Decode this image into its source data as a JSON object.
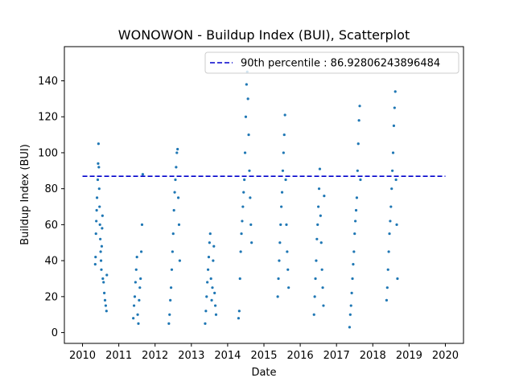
{
  "chart_data": {
    "type": "scatter",
    "title": "WONOWON - Buildup Index (BUI), Scatterplot",
    "xlabel": "Date",
    "ylabel": "Buildup Index (BUI)",
    "xlim": [
      2009.5,
      2020.5
    ],
    "ylim": [
      -6,
      159
    ],
    "x_ticks": [
      "2010",
      "2011",
      "2012",
      "2013",
      "2014",
      "2015",
      "2016",
      "2017",
      "2018",
      "2019",
      "2020"
    ],
    "y_ticks": [
      "0",
      "20",
      "40",
      "60",
      "80",
      "100",
      "120",
      "140"
    ],
    "grid": false,
    "legend": {
      "placement": "top-right",
      "entries": [
        "90th percentile : 86.92806243896484"
      ]
    },
    "reference_line": {
      "name": "90th percentile : 86.92806243896484",
      "y": 86.92806243896484,
      "x_range": [
        2010,
        2020
      ],
      "style": "dashed",
      "color": "#0000cc"
    },
    "point_color": "#1f77b4",
    "series": [
      {
        "name": "",
        "x": [
          2010.35,
          2010.36,
          2010.37,
          2010.38,
          2010.39,
          2010.4,
          2010.42,
          2010.43,
          2010.44,
          2010.45,
          2010.46,
          2010.47,
          2010.48,
          2010.49,
          2010.5,
          2010.51,
          2010.52,
          2010.53,
          2010.54,
          2010.55,
          2010.56,
          2010.58,
          2010.6,
          2010.62,
          2010.64,
          2010.66,
          2010.67,
          2011.4,
          2011.42,
          2011.44,
          2011.46,
          2011.48,
          2011.5,
          2011.52,
          2011.54,
          2011.56,
          2011.58,
          2011.6,
          2011.62,
          2011.64,
          2011.66,
          2012.38,
          2012.4,
          2012.42,
          2012.44,
          2012.46,
          2012.48,
          2012.5,
          2012.52,
          2012.54,
          2012.56,
          2012.58,
          2012.6,
          2012.62,
          2012.64,
          2012.66,
          2012.68,
          2013.38,
          2013.4,
          2013.42,
          2013.44,
          2013.46,
          2013.48,
          2013.5,
          2013.52,
          2013.54,
          2013.56,
          2013.58,
          2013.6,
          2013.62,
          2013.64,
          2013.66,
          2013.68,
          2014.3,
          2014.32,
          2014.34,
          2014.36,
          2014.38,
          2014.4,
          2014.42,
          2014.44,
          2014.46,
          2014.48,
          2014.5,
          2014.52,
          2014.54,
          2014.56,
          2014.58,
          2014.6,
          2014.62,
          2014.64,
          2014.66,
          2015.38,
          2015.4,
          2015.42,
          2015.44,
          2015.46,
          2015.48,
          2015.5,
          2015.52,
          2015.54,
          2015.56,
          2015.58,
          2015.6,
          2015.62,
          2015.64,
          2015.66,
          2015.68,
          2016.38,
          2016.4,
          2016.42,
          2016.44,
          2016.46,
          2016.48,
          2016.5,
          2016.52,
          2016.54,
          2016.56,
          2016.58,
          2016.6,
          2016.62,
          2016.64,
          2016.66,
          2017.36,
          2017.38,
          2017.4,
          2017.42,
          2017.44,
          2017.46,
          2017.48,
          2017.5,
          2017.52,
          2017.54,
          2017.56,
          2017.58,
          2017.6,
          2017.62,
          2017.64,
          2017.66,
          2018.38,
          2018.4,
          2018.42,
          2018.44,
          2018.46,
          2018.48,
          2018.5,
          2018.52,
          2018.54,
          2018.56,
          2018.58,
          2018.6,
          2018.62,
          2018.64,
          2018.66,
          2018.68
        ],
        "y": [
          38,
          42,
          55,
          62,
          68,
          75,
          85,
          94,
          105,
          92,
          80,
          70,
          60,
          52,
          45,
          40,
          35,
          48,
          58,
          65,
          30,
          28,
          22,
          18,
          15,
          12,
          32,
          8,
          15,
          20,
          28,
          35,
          42,
          10,
          5,
          18,
          25,
          30,
          45,
          60,
          88,
          5,
          10,
          18,
          25,
          35,
          45,
          55,
          68,
          78,
          85,
          92,
          100,
          102,
          75,
          60,
          40,
          5,
          12,
          20,
          28,
          35,
          42,
          50,
          55,
          30,
          18,
          25,
          40,
          48,
          22,
          15,
          10,
          8,
          12,
          30,
          45,
          55,
          62,
          70,
          78,
          85,
          100,
          120,
          138,
          145,
          130,
          110,
          90,
          75,
          60,
          50,
          20,
          30,
          40,
          50,
          60,
          70,
          78,
          90,
          100,
          110,
          121,
          85,
          60,
          45,
          35,
          25,
          10,
          20,
          30,
          40,
          52,
          60,
          70,
          80,
          91,
          65,
          50,
          35,
          25,
          15,
          76,
          3,
          10,
          15,
          22,
          30,
          38,
          45,
          55,
          62,
          68,
          75,
          90,
          105,
          118,
          126,
          85,
          18,
          25,
          35,
          45,
          55,
          62,
          70,
          80,
          90,
          100,
          115,
          125,
          134,
          85,
          60,
          30
        ]
      }
    ]
  }
}
